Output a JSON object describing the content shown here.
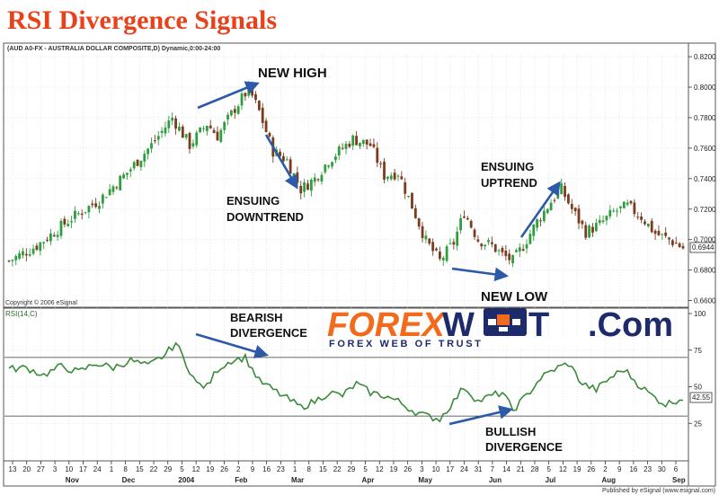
{
  "title": "RSI Divergence Signals",
  "header_text": "(AUD A0-FX - AUSTRALIA DOLLAR COMPOSITE,D) Dynamic,0:00-24:00",
  "copyright": "Copyright © 2006 eSignal",
  "published": "Published by eSignal (www.esignal.com)",
  "rsi_label": "RSI(14,C)",
  "logo": {
    "text_a": "FOREX",
    "text_b": "W",
    "text_c": "T",
    "text_d": ".Com",
    "tagline": "FOREX WEB OF TRUST"
  },
  "annotations": {
    "new_high": "NEW HIGH",
    "ensuing_downtrend_1": "ENSUING",
    "ensuing_downtrend_2": "DOWNTREND",
    "ensuing_uptrend_1": "ENSUING",
    "ensuing_uptrend_2": "UPTREND",
    "new_low": "NEW LOW",
    "bearish_1": "BEARISH",
    "bearish_2": "DIVERGENCE",
    "bullish_1": "BULLISH",
    "bullish_2": "DIVERGENCE"
  },
  "colors": {
    "title": "#e8421a",
    "up_candle": "#2e9e3e",
    "down_candle": "#7a3b1e",
    "rsi_line": "#3a8a3a",
    "arrow": "#2d5aa8",
    "logo_orange": "#f26a1b",
    "logo_navy": "#1d2b6b"
  },
  "chart_data": [
    {
      "type": "candlestick",
      "series_name": "AUD A0-FX",
      "y_ticks": [
        "0.8200",
        "0.8000",
        "0.7800",
        "0.7600",
        "0.7400",
        "0.7200",
        "0.7000",
        "0.6800",
        "0.6600"
      ],
      "ylim": [
        0.658,
        0.823
      ],
      "last_value": "0.6944",
      "x_day_ticks": [
        "13",
        "20",
        "27",
        "3",
        "10",
        "17",
        "24",
        "1",
        "8",
        "15",
        "22",
        "29",
        "5",
        "12",
        "19",
        "26",
        "2",
        "9",
        "16",
        "23",
        "1",
        "8",
        "15",
        "22",
        "29",
        "5",
        "12",
        "19",
        "26",
        "3",
        "10",
        "17",
        "24",
        "31",
        "7",
        "14",
        "21",
        "28",
        "5",
        "12",
        "19",
        "26",
        "2",
        "9",
        "16",
        "23",
        "30",
        "6"
      ],
      "x_month_labels": [
        "Nov",
        "Dec",
        "2004",
        "Feb",
        "Mar",
        "Apr",
        "May",
        "Jun",
        "Jul",
        "Aug",
        "Sep"
      ],
      "close_anchors": [
        [
          0,
          0.686
        ],
        [
          8,
          0.696
        ],
        [
          18,
          0.714
        ],
        [
          26,
          0.726
        ],
        [
          34,
          0.744
        ],
        [
          41,
          0.762
        ],
        [
          47,
          0.78
        ],
        [
          52,
          0.762
        ],
        [
          57,
          0.776
        ],
        [
          60,
          0.768
        ],
        [
          65,
          0.786
        ],
        [
          69,
          0.799
        ],
        [
          72,
          0.784
        ],
        [
          76,
          0.758
        ],
        [
          80,
          0.752
        ],
        [
          84,
          0.733
        ],
        [
          88,
          0.74
        ],
        [
          92,
          0.752
        ],
        [
          95,
          0.758
        ],
        [
          99,
          0.766
        ],
        [
          104,
          0.762
        ],
        [
          108,
          0.742
        ],
        [
          112,
          0.744
        ],
        [
          116,
          0.722
        ],
        [
          120,
          0.699
        ],
        [
          124,
          0.686
        ],
        [
          128,
          0.698
        ],
        [
          131,
          0.718
        ],
        [
          135,
          0.7
        ],
        [
          139,
          0.696
        ],
        [
          142,
          0.69
        ],
        [
          145,
          0.686
        ],
        [
          148,
          0.696
        ],
        [
          152,
          0.712
        ],
        [
          156,
          0.725
        ],
        [
          159,
          0.733
        ],
        [
          162,
          0.72
        ],
        [
          166,
          0.705
        ],
        [
          170,
          0.71
        ],
        [
          174,
          0.718
        ],
        [
          178,
          0.722
        ],
        [
          182,
          0.715
        ],
        [
          186,
          0.704
        ],
        [
          190,
          0.7
        ],
        [
          194,
          0.6944
        ]
      ]
    },
    {
      "type": "line",
      "series_name": "RSI(14,C)",
      "y_ticks": [
        "100",
        "75",
        "50",
        "25"
      ],
      "ylim": [
        0,
        100
      ],
      "overbought": 70,
      "oversold": 30,
      "last_value": "42.55",
      "rsi_anchors": [
        [
          0,
          62
        ],
        [
          5,
          63
        ],
        [
          10,
          58
        ],
        [
          15,
          64
        ],
        [
          20,
          60
        ],
        [
          25,
          66
        ],
        [
          30,
          63
        ],
        [
          35,
          68
        ],
        [
          40,
          64
        ],
        [
          45,
          72
        ],
        [
          48,
          80
        ],
        [
          51,
          66
        ],
        [
          54,
          52
        ],
        [
          57,
          50
        ],
        [
          60,
          62
        ],
        [
          64,
          68
        ],
        [
          68,
          70
        ],
        [
          72,
          54
        ],
        [
          76,
          48
        ],
        [
          80,
          42
        ],
        [
          84,
          36
        ],
        [
          88,
          40
        ],
        [
          92,
          46
        ],
        [
          96,
          44
        ],
        [
          100,
          52
        ],
        [
          104,
          46
        ],
        [
          108,
          44
        ],
        [
          112,
          40
        ],
        [
          116,
          34
        ],
        [
          120,
          30
        ],
        [
          124,
          28
        ],
        [
          128,
          40
        ],
        [
          131,
          50
        ],
        [
          135,
          40
        ],
        [
          139,
          44
        ],
        [
          142,
          46
        ],
        [
          145,
          34
        ],
        [
          149,
          44
        ],
        [
          153,
          56
        ],
        [
          157,
          62
        ],
        [
          161,
          66
        ],
        [
          165,
          52
        ],
        [
          169,
          48
        ],
        [
          173,
          56
        ],
        [
          177,
          62
        ],
        [
          181,
          52
        ],
        [
          185,
          44
        ],
        [
          189,
          38
        ],
        [
          194,
          42.55
        ]
      ]
    }
  ]
}
